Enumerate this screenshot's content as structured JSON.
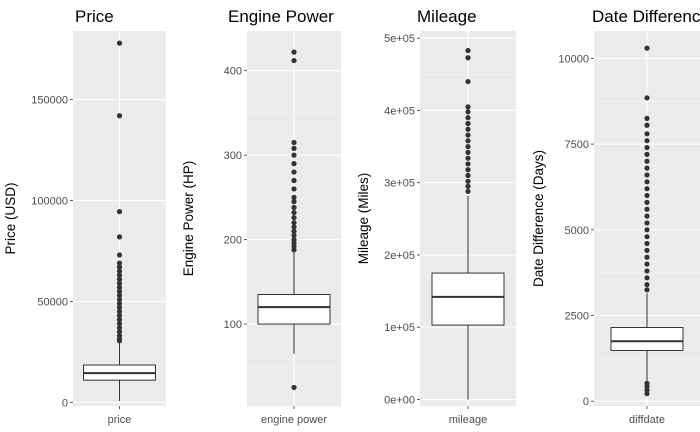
{
  "chart_data": [
    {
      "type": "box",
      "title": "Price",
      "ylabel": "Price (USD)",
      "category": "price",
      "ylim": [
        -1800,
        184000
      ],
      "yticks": [
        0,
        50000,
        100000,
        150000
      ],
      "ytick_labels": [
        "0",
        "50000",
        "100000",
        "150000"
      ],
      "box": {
        "whisker_low": 700,
        "q1": 11000,
        "median": 14500,
        "q3": 18500,
        "whisker_high": 29500
      },
      "outliers": [
        178000,
        142000,
        94500,
        82000,
        73000,
        69000,
        67000,
        65000,
        63000,
        61000,
        59000,
        57000,
        55000,
        53000,
        51000,
        49000,
        47000,
        45000,
        43000,
        41000,
        39000,
        37000,
        35000,
        33000,
        31500,
        30500
      ]
    },
    {
      "type": "box",
      "title": "Engine Power",
      "ylabel": "Engine Power (HP)",
      "category": "engine power",
      "ylim": [
        3,
        447
      ],
      "yticks": [
        100,
        200,
        300,
        400
      ],
      "ytick_labels": [
        "100",
        "200",
        "300",
        "400"
      ],
      "box": {
        "whisker_low": 65,
        "q1": 100,
        "median": 120,
        "q3": 135,
        "whisker_high": 185
      },
      "outliers": [
        422,
        412,
        315,
        308,
        300,
        290,
        280,
        270,
        260,
        250,
        245,
        238,
        232,
        226,
        220,
        215,
        210,
        205,
        200,
        196,
        192,
        188,
        25
      ]
    },
    {
      "type": "box",
      "title": "Mileage",
      "ylabel": "Mileage (Miles)",
      "category": "mileage",
      "ylim": [
        -9000,
        510000
      ],
      "yticks": [
        0,
        100000,
        200000,
        300000,
        400000,
        500000
      ],
      "ytick_labels": [
        "0e+00",
        "1e+05",
        "2e+05",
        "3e+05",
        "4e+05",
        "5e+05"
      ],
      "box": {
        "whisker_low": 0,
        "q1": 103000,
        "median": 142000,
        "q3": 175000,
        "whisker_high": 282000
      },
      "outliers": [
        483000,
        473000,
        440000,
        405000,
        398000,
        390000,
        382000,
        374000,
        366000,
        358000,
        350000,
        342000,
        334000,
        326000,
        318000,
        310000,
        302000,
        295000,
        288000
      ]
    },
    {
      "type": "box",
      "title": "Date Difference",
      "ylabel": "Date Difference (Days)",
      "category": "diffdate",
      "ylim": [
        -140,
        10800
      ],
      "yticks": [
        0,
        2500,
        5000,
        7500,
        10000
      ],
      "ytick_labels": [
        "0",
        "2500",
        "5000",
        "7500",
        "10000"
      ],
      "box": {
        "whisker_low": 600,
        "q1": 1480,
        "median": 1750,
        "q3": 2150,
        "whisker_high": 3150
      },
      "outliers": [
        10300,
        8850,
        8250,
        8050,
        7800,
        7600,
        7400,
        7200,
        7000,
        6800,
        6600,
        6400,
        6200,
        6000,
        5800,
        5600,
        5400,
        5200,
        5000,
        4800,
        4600,
        4400,
        4200,
        4000,
        3800,
        3600,
        3400,
        3250,
        520,
        420,
        320,
        220
      ]
    }
  ]
}
